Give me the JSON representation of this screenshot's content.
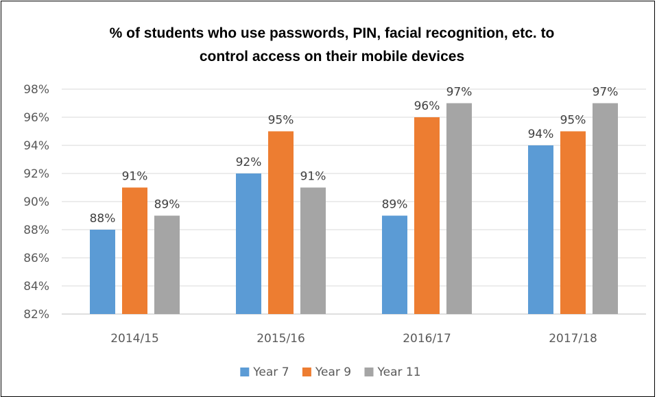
{
  "chart_data": {
    "type": "bar",
    "title": "% of students who use passwords, PIN, facial recognition, etc. to control access on their mobile devices",
    "title_lines": [
      "% of students who use passwords, PIN, facial recognition, etc. to",
      "control access on their mobile devices"
    ],
    "categories": [
      "2014/15",
      "2015/16",
      "2016/17",
      "2017/18"
    ],
    "series": [
      {
        "name": "Year 7",
        "color": "#5B9BD5",
        "values": [
          88,
          92,
          89,
          94
        ],
        "labels": [
          "88%",
          "92%",
          "89%",
          "94%"
        ]
      },
      {
        "name": "Year 9",
        "color": "#ED7D31",
        "values": [
          91,
          95,
          96,
          95
        ],
        "labels": [
          "91%",
          "95%",
          "96%",
          "95%"
        ]
      },
      {
        "name": "Year 11",
        "color": "#A5A5A5",
        "values": [
          89,
          91,
          97,
          97
        ],
        "labels": [
          "89%",
          "91%",
          "97%",
          "97%"
        ]
      }
    ],
    "ylim": [
      82,
      98
    ],
    "yticks": [
      82,
      84,
      86,
      88,
      90,
      92,
      94,
      96,
      98
    ],
    "ytick_labels": [
      "82%",
      "84%",
      "86%",
      "88%",
      "90%",
      "92%",
      "94%",
      "96%",
      "98%"
    ],
    "grid": true,
    "legend_position": "bottom"
  }
}
